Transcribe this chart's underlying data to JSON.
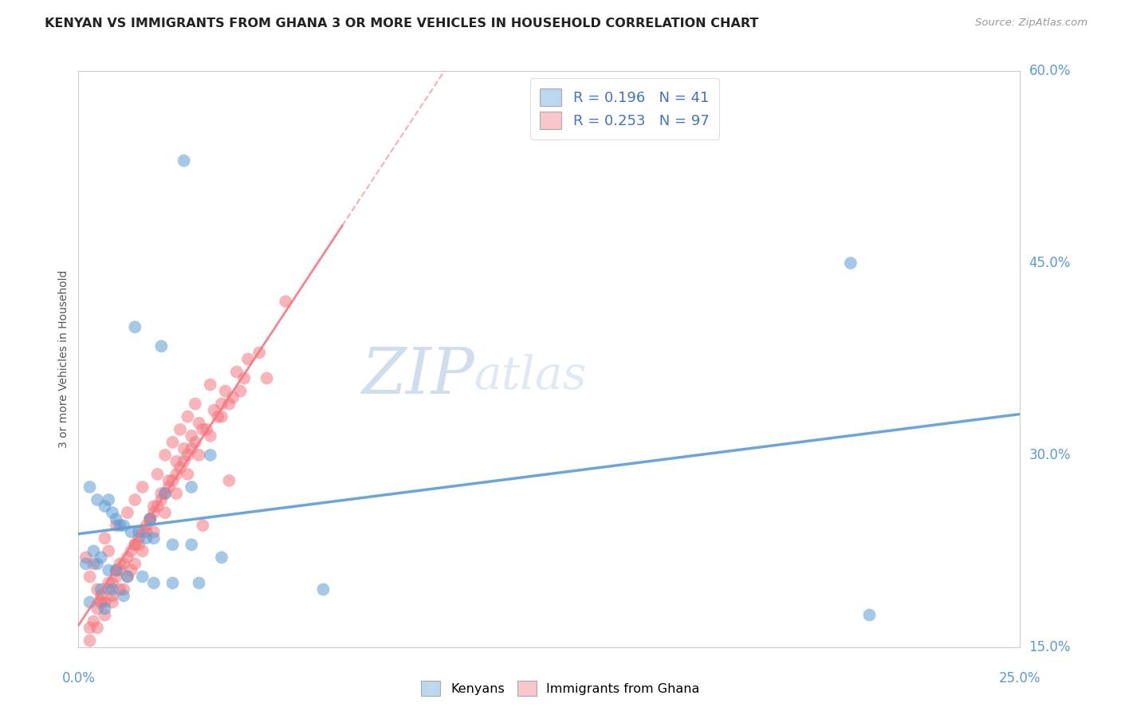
{
  "title": "KENYAN VS IMMIGRANTS FROM GHANA 3 OR MORE VEHICLES IN HOUSEHOLD CORRELATION CHART",
  "source": "Source: ZipAtlas.com",
  "x_min": 0.0,
  "x_max": 25.0,
  "y_min": 15.0,
  "y_max": 60.0,
  "legend_label_blue": "Kenyans",
  "legend_label_pink": "Immigrants from Ghana",
  "R_blue": 0.196,
  "N_blue": 41,
  "R_pink": 0.253,
  "N_pink": 97,
  "blue_color": "#5b9bd5",
  "pink_color": "#f4777f",
  "blue_fill": "#bdd7ee",
  "pink_fill": "#f9c6cb",
  "watermark_zip": "ZIP",
  "watermark_atlas": "atlas",
  "blue_x": [
    1.5,
    2.2,
    2.8,
    0.3,
    0.5,
    0.7,
    0.8,
    0.9,
    1.0,
    1.1,
    1.2,
    1.4,
    1.6,
    1.8,
    2.0,
    2.5,
    3.0,
    0.4,
    0.6,
    3.8,
    0.2,
    0.5,
    0.8,
    1.0,
    1.3,
    1.7,
    2.0,
    2.5,
    3.2,
    0.6,
    0.9,
    1.2,
    0.3,
    0.7,
    3.5,
    3.0,
    1.9,
    2.3,
    20.5,
    21.0,
    6.5
  ],
  "blue_y": [
    40.0,
    38.5,
    53.0,
    27.5,
    26.5,
    26.0,
    26.5,
    25.5,
    25.0,
    24.5,
    24.5,
    24.0,
    24.0,
    23.5,
    23.5,
    23.0,
    23.0,
    22.5,
    22.0,
    22.0,
    21.5,
    21.5,
    21.0,
    21.0,
    20.5,
    20.5,
    20.0,
    20.0,
    20.0,
    19.5,
    19.5,
    19.0,
    18.5,
    18.0,
    30.0,
    27.5,
    25.0,
    27.0,
    45.0,
    17.5,
    19.5
  ],
  "pink_x": [
    0.2,
    0.3,
    0.4,
    0.5,
    0.6,
    0.7,
    0.8,
    0.9,
    1.0,
    1.1,
    1.2,
    1.3,
    1.4,
    1.5,
    1.6,
    1.7,
    1.8,
    1.9,
    2.0,
    2.1,
    2.2,
    2.3,
    2.4,
    2.5,
    2.6,
    2.7,
    2.8,
    2.9,
    3.0,
    3.1,
    3.2,
    3.3,
    3.5,
    3.8,
    4.0,
    4.5,
    5.0,
    5.5,
    0.3,
    0.5,
    0.7,
    0.9,
    1.1,
    1.3,
    1.5,
    1.7,
    1.9,
    2.1,
    2.3,
    2.5,
    2.7,
    2.9,
    3.1,
    3.4,
    3.7,
    4.0,
    4.3,
    4.8,
    0.4,
    0.6,
    0.8,
    1.0,
    1.2,
    1.4,
    1.6,
    1.8,
    2.0,
    2.2,
    2.4,
    2.6,
    2.8,
    3.0,
    3.3,
    3.6,
    3.9,
    4.2,
    0.3,
    0.5,
    0.7,
    0.9,
    1.1,
    1.3,
    1.5,
    1.7,
    2.0,
    2.3,
    2.6,
    2.9,
    3.2,
    3.5,
    3.8,
    4.1,
    4.4,
    0.6,
    0.8,
    1.0,
    1.5
  ],
  "pink_y": [
    22.0,
    20.5,
    21.5,
    19.5,
    18.5,
    23.5,
    22.5,
    19.0,
    24.5,
    21.5,
    19.5,
    25.5,
    21.0,
    26.5,
    23.0,
    27.5,
    24.0,
    25.0,
    26.0,
    28.5,
    27.0,
    30.0,
    28.0,
    31.0,
    29.5,
    32.0,
    30.5,
    33.0,
    31.5,
    34.0,
    32.5,
    24.5,
    35.5,
    34.0,
    28.0,
    37.5,
    36.0,
    42.0,
    16.5,
    18.0,
    18.5,
    20.0,
    21.0,
    22.0,
    23.0,
    24.0,
    25.0,
    26.0,
    27.0,
    28.0,
    29.0,
    30.0,
    31.0,
    32.0,
    33.0,
    34.0,
    35.0,
    38.0,
    17.0,
    18.5,
    19.5,
    20.5,
    21.5,
    22.5,
    23.5,
    24.5,
    25.5,
    26.5,
    27.5,
    28.5,
    29.5,
    30.5,
    32.0,
    33.5,
    35.0,
    36.5,
    15.5,
    16.5,
    17.5,
    18.5,
    19.5,
    20.5,
    21.5,
    22.5,
    24.0,
    25.5,
    27.0,
    28.5,
    30.0,
    31.5,
    33.0,
    34.5,
    36.0,
    19.0,
    20.0,
    21.0,
    23.0
  ]
}
